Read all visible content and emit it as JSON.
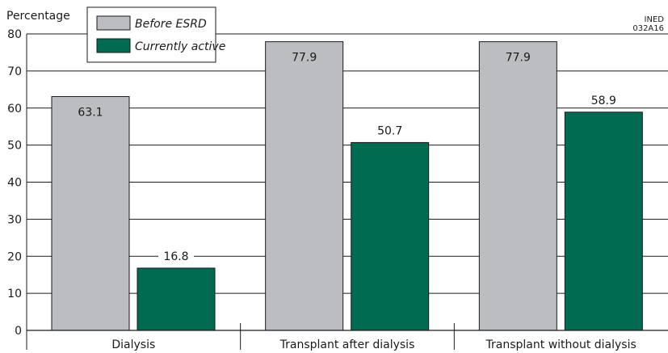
{
  "chart_data": {
    "type": "bar",
    "ylabel": "Percentage",
    "ylim": [
      0,
      80
    ],
    "yticks": [
      0,
      10,
      20,
      30,
      40,
      50,
      60,
      70,
      80
    ],
    "categories": [
      "Dialysis",
      "Transplant after dialysis",
      "Transplant without dialysis"
    ],
    "series": [
      {
        "name": "Before ESRD",
        "color": "#bcbdc0",
        "values": [
          63.1,
          77.9,
          77.9
        ]
      },
      {
        "name": "Currently active",
        "color": "#006b51",
        "values": [
          16.8,
          50.7,
          58.9
        ]
      }
    ],
    "grid": true,
    "legend_position": "top-left",
    "credit": [
      "INED",
      "032A16"
    ]
  }
}
